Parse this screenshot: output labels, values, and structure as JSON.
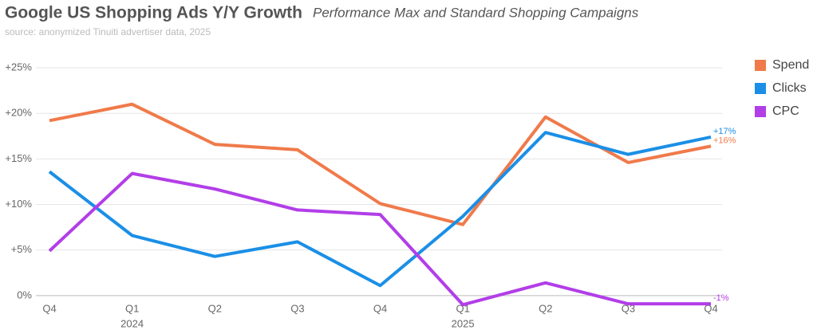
{
  "chart_data": {
    "type": "line",
    "title": "Google US Shopping Ads Y/Y Growth",
    "subtitle": "Performance Max and Standard Shopping Campaigns",
    "source": "source: anonymized Tinuiti advertiser data, 2025",
    "categories": [
      "Q4",
      "Q1",
      "Q2",
      "Q3",
      "Q4",
      "Q1",
      "Q2",
      "Q3",
      "Q4"
    ],
    "category_years": [
      null,
      "2024",
      null,
      null,
      null,
      "2025",
      null,
      null,
      null
    ],
    "series": [
      {
        "name": "Spend",
        "color": "#f07a4a",
        "values": [
          19.2,
          21.0,
          16.6,
          16.0,
          10.1,
          7.8,
          19.6,
          14.6,
          16.4
        ],
        "value_labels": [
          null,
          null,
          null,
          null,
          null,
          null,
          null,
          null,
          "+16%"
        ]
      },
      {
        "name": "Clicks",
        "color": "#1b8fe6",
        "values": [
          13.6,
          6.6,
          4.3,
          5.9,
          1.1,
          8.7,
          17.9,
          15.5,
          17.4
        ],
        "value_labels": [
          null,
          null,
          null,
          null,
          null,
          null,
          null,
          null,
          "+17%"
        ]
      },
      {
        "name": "CPC",
        "color": "#b23ee8",
        "values": [
          4.9,
          13.4,
          11.7,
          9.4,
          8.9,
          -1.0,
          1.4,
          -0.9,
          -0.9
        ],
        "value_labels": [
          null,
          null,
          null,
          null,
          null,
          null,
          null,
          null,
          "-1%"
        ]
      }
    ],
    "ylim": [
      -1.5,
      26
    ],
    "yticks": [
      {
        "value": 0,
        "label": "0%"
      },
      {
        "value": 5,
        "label": "+5%"
      },
      {
        "value": 10,
        "label": "+10%"
      },
      {
        "value": 15,
        "label": "+15%"
      },
      {
        "value": 20,
        "label": "+20%"
      },
      {
        "value": 25,
        "label": "+25%"
      }
    ],
    "grid": true,
    "legend": "right"
  }
}
